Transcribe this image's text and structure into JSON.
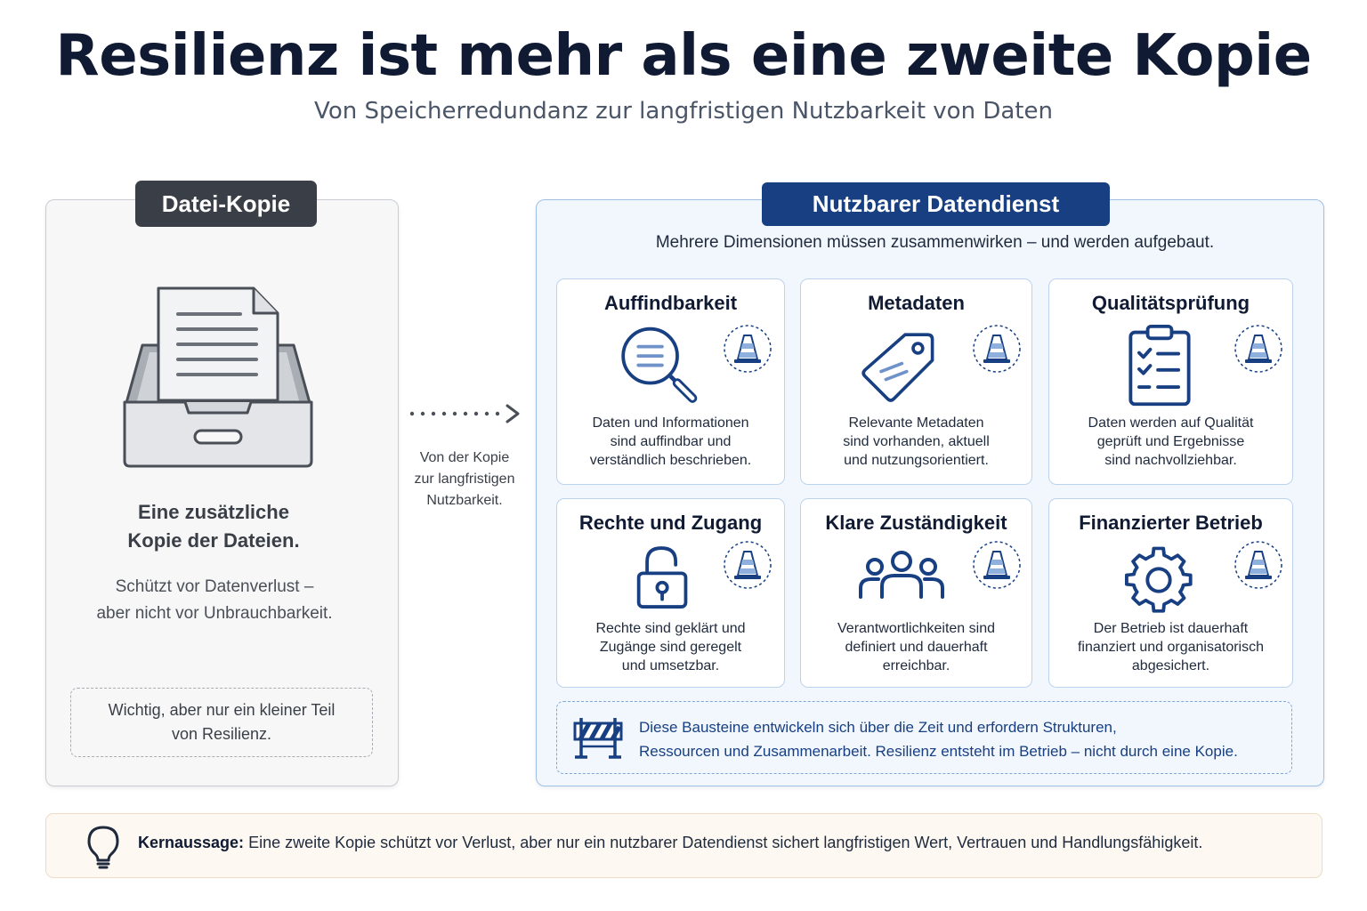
{
  "header": {
    "title": "Resilienz ist mehr als eine zweite Kopie",
    "subtitle": "Von Speicherredundanz zur langfristigen Nutzbarkeit von Daten"
  },
  "left": {
    "badge": "Datei-Kopie",
    "heading_line1": "Eine zusätzliche",
    "heading_line2": "Kopie der Dateien.",
    "text_line1": "Schützt vor Datenverlust –",
    "text_line2": "aber nicht vor Unbrauchbarkeit.",
    "note_line1": "Wichtig, aber nur ein kleiner Teil",
    "note_line2": "von Resilienz."
  },
  "arrow": {
    "line1": "Von der Kopie",
    "line2": "zur langfristigen",
    "line3": "Nutzbarkeit."
  },
  "right": {
    "badge": "Nutzbarer Datendienst",
    "intro": "Mehrere Dimensionen müssen zusammenwirken – und werden aufgebaut.",
    "cards": [
      {
        "title": "Auffindbarkeit",
        "icon": "magnifier-icon",
        "lines": [
          "Daten und Informationen",
          "sind auffindbar und",
          "verständlich beschrieben."
        ]
      },
      {
        "title": "Metadaten",
        "icon": "tag-icon",
        "lines": [
          "Relevante Metadaten",
          "sind vorhanden, aktuell",
          "und nutzungsorientiert."
        ]
      },
      {
        "title": "Qualitätsprüfung",
        "icon": "clipboard-checklist-icon",
        "lines": [
          "Daten werden auf Qualität",
          "geprüft und Ergebnisse",
          "sind nachvollziehbar."
        ]
      },
      {
        "title": "Rechte und Zugang",
        "icon": "padlock-icon",
        "lines": [
          "Rechte sind geklärt und",
          "Zugänge sind geregelt",
          "und umsetzbar."
        ]
      },
      {
        "title": "Klare Zuständigkeit",
        "icon": "people-icon",
        "lines": [
          "Verantwortlichkeiten sind",
          "definiert und dauerhaft",
          "erreichbar."
        ]
      },
      {
        "title": "Finanzierter Betrieb",
        "icon": "gear-icon",
        "lines": [
          "Der Betrieb ist dauerhaft",
          "finanziert und organisatorisch",
          "abgesichert."
        ]
      }
    ],
    "note_line1": "Diese Bausteine entwickeln sich über die Zeit und erfordern Strukturen,",
    "note_line2": "Ressourcen und Zusammenarbeit. Resilienz entsteht im Betrieb – nicht durch eine Kopie."
  },
  "keymsg": {
    "label": "Kernaussage:",
    "text": "Eine zweite Kopie schützt vor Verlust, aber nur ein nutzbarer Datendienst sichert langfristigen Wert, Vertrauen und Handlungsfähigkeit."
  },
  "colors": {
    "navy": "#173f82",
    "dark_gray": "#3a3f47",
    "card_border": "#bcd3ee",
    "panel_blue": "#f2f7fd",
    "keymsg_bg": "#fdf9f2"
  }
}
